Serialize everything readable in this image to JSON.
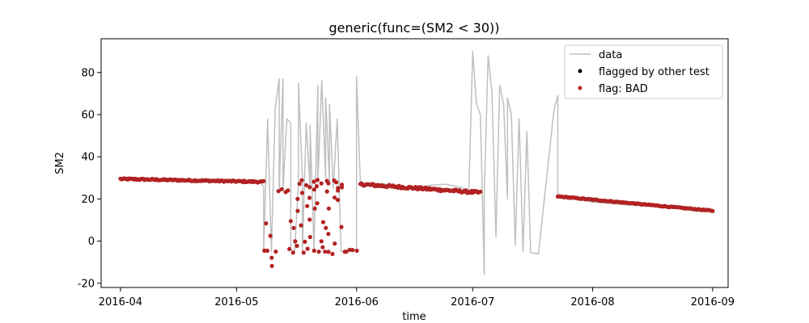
{
  "chart_data": {
    "type": "scatter",
    "title": "generic(func=(SM2 < 30))",
    "xlabel": "time",
    "ylabel": "SM2",
    "x_ticks": [
      "2016-04",
      "2016-05",
      "2016-06",
      "2016-07",
      "2016-08",
      "2016-09"
    ],
    "x_tick_dates": [
      "2016-04-01",
      "2016-05-01",
      "2016-06-01",
      "2016-07-01",
      "2016-08-01",
      "2016-09-01"
    ],
    "y_ticks": [
      -20,
      0,
      20,
      40,
      60,
      80
    ],
    "xlim": [
      "2016-03-27",
      "2016-09-05"
    ],
    "ylim": [
      -22,
      96
    ],
    "grid": false,
    "legend": {
      "placement": "top-right",
      "entries": [
        "data",
        "flagged by other test",
        "flag: BAD"
      ]
    },
    "colors": {
      "data": "#bfbfbf",
      "flagged_other": "#000000",
      "bad": "#b22222"
    },
    "series": [
      {
        "name": "data",
        "style": "line",
        "points": [
          [
            "2016-04-01",
            29.5
          ],
          [
            "2016-04-10",
            29.2
          ],
          [
            "2016-04-20",
            28.8
          ],
          [
            "2016-05-01",
            28.3
          ],
          [
            "2016-05-07",
            28.0
          ],
          [
            "2016-05-08",
            26.0
          ],
          [
            "2016-05-08",
            -4.0
          ],
          [
            "2016-05-09",
            55.0
          ],
          [
            "2016-05-09",
            58.0
          ],
          [
            "2016-05-10",
            -5.0
          ],
          [
            "2016-05-11",
            64.0
          ],
          [
            "2016-05-11",
            63.0
          ],
          [
            "2016-05-12",
            77.0
          ],
          [
            "2016-05-12",
            24.0
          ],
          [
            "2016-05-13",
            77.0
          ],
          [
            "2016-05-13",
            24.5
          ],
          [
            "2016-05-14",
            58.0
          ],
          [
            "2016-05-15",
            56.0
          ],
          [
            "2016-05-15",
            -4.0
          ],
          [
            "2016-05-16",
            -5.0
          ],
          [
            "2016-05-17",
            28.0
          ],
          [
            "2016-05-17",
            75.0
          ],
          [
            "2016-05-18",
            30.0
          ],
          [
            "2016-05-18",
            -5.0
          ],
          [
            "2016-05-19",
            56.0
          ],
          [
            "2016-05-20",
            25.0
          ],
          [
            "2016-05-20",
            55.0
          ],
          [
            "2016-05-21",
            -4.0
          ],
          [
            "2016-05-22",
            74.0
          ],
          [
            "2016-05-22",
            28.0
          ],
          [
            "2016-05-23",
            76.0
          ],
          [
            "2016-05-24",
            30.0
          ],
          [
            "2016-05-24",
            68.0
          ],
          [
            "2016-05-25",
            28.0
          ],
          [
            "2016-05-25",
            65.0
          ],
          [
            "2016-05-26",
            25.0
          ],
          [
            "2016-05-27",
            58.0
          ],
          [
            "2016-05-28",
            -5.0
          ],
          [
            "2016-05-29",
            -4.5
          ],
          [
            "2016-05-31",
            -4.5
          ],
          [
            "2016-06-01",
            -4.5
          ],
          [
            "2016-06-01",
            78.0
          ],
          [
            "2016-06-02",
            27.0
          ],
          [
            "2016-06-05",
            26.0
          ],
          [
            "2016-06-08",
            27.5
          ],
          [
            "2016-06-10",
            25.0
          ],
          [
            "2016-06-13",
            25.5
          ],
          [
            "2016-06-16",
            25.0
          ],
          [
            "2016-06-20",
            26.5
          ],
          [
            "2016-06-24",
            27.0
          ],
          [
            "2016-06-28",
            25.5
          ],
          [
            "2016-06-30",
            23.0
          ],
          [
            "2016-07-01",
            90.0
          ],
          [
            "2016-07-02",
            65.0
          ],
          [
            "2016-07-03",
            60.0
          ],
          [
            "2016-07-04",
            -16.0
          ],
          [
            "2016-07-04",
            23.0
          ],
          [
            "2016-07-05",
            88.0
          ],
          [
            "2016-07-06",
            70.0
          ],
          [
            "2016-07-07",
            2.0
          ],
          [
            "2016-07-08",
            74.0
          ],
          [
            "2016-07-09",
            65.0
          ],
          [
            "2016-07-10",
            20.0
          ],
          [
            "2016-07-10",
            68.0
          ],
          [
            "2016-07-11",
            60.0
          ],
          [
            "2016-07-12",
            -2.0
          ],
          [
            "2016-07-13",
            58.0
          ],
          [
            "2016-07-14",
            -5.0
          ],
          [
            "2016-07-15",
            52.0
          ],
          [
            "2016-07-16",
            -5.5
          ],
          [
            "2016-07-18",
            -6.0
          ],
          [
            "2016-07-22",
            62.0
          ],
          [
            "2016-07-23",
            69.0
          ],
          [
            "2016-07-23",
            21.3
          ],
          [
            "2016-08-01",
            18.5
          ],
          [
            "2016-08-10",
            17.2
          ],
          [
            "2016-08-20",
            16.0
          ],
          [
            "2016-09-01",
            14.5
          ]
        ]
      },
      {
        "name": "flag: BAD",
        "style": "scatter",
        "segments": [
          {
            "start": "2016-04-01",
            "end": "2016-05-08",
            "y_start": 29.5,
            "y_end": 28.1,
            "spread": 0.7,
            "count": 120
          },
          {
            "start": "2016-06-02",
            "end": "2016-07-03",
            "y_start": 27.0,
            "y_end": 23.0,
            "spread": 1.2,
            "count": 110
          },
          {
            "start": "2016-07-23",
            "end": "2016-09-01",
            "y_start": 21.2,
            "y_end": 14.4,
            "spread": 0.4,
            "count": 120
          }
        ],
        "points": [
          [
            "2016-05-08",
            -4.0
          ],
          [
            "2016-05-09",
            8.0
          ],
          [
            "2016-05-09",
            -5.0
          ],
          [
            "2016-05-10",
            -11.5
          ],
          [
            "2016-05-10",
            3.0
          ],
          [
            "2016-05-10",
            -8.0
          ],
          [
            "2016-05-11",
            -4.5
          ],
          [
            "2016-05-12",
            24.0
          ],
          [
            "2016-05-13",
            25.0
          ],
          [
            "2016-05-14",
            23.5
          ],
          [
            "2016-05-14",
            24.5
          ],
          [
            "2016-05-15",
            9.0
          ],
          [
            "2016-05-15",
            -4.0
          ],
          [
            "2016-05-16",
            0.0
          ],
          [
            "2016-05-16",
            -5.0
          ],
          [
            "2016-05-16",
            6.0
          ],
          [
            "2016-05-17",
            27.0
          ],
          [
            "2016-05-17",
            20.0
          ],
          [
            "2016-05-17",
            14.0
          ],
          [
            "2016-05-17",
            -2.0
          ],
          [
            "2016-05-18",
            29.0
          ],
          [
            "2016-05-18",
            23.0
          ],
          [
            "2016-05-18",
            8.0
          ],
          [
            "2016-05-18",
            -5.0
          ],
          [
            "2016-05-19",
            26.0
          ],
          [
            "2016-05-19",
            17.0
          ],
          [
            "2016-05-19",
            0.0
          ],
          [
            "2016-05-19",
            -4.0
          ],
          [
            "2016-05-20",
            25.0
          ],
          [
            "2016-05-20",
            21.0
          ],
          [
            "2016-05-20",
            10.0
          ],
          [
            "2016-05-20",
            2.0
          ],
          [
            "2016-05-21",
            28.0
          ],
          [
            "2016-05-21",
            -4.0
          ],
          [
            "2016-05-21",
            24.0
          ],
          [
            "2016-05-21",
            15.0
          ],
          [
            "2016-05-22",
            29.0
          ],
          [
            "2016-05-22",
            26.0
          ],
          [
            "2016-05-22",
            18.0
          ],
          [
            "2016-05-22",
            -5.0
          ],
          [
            "2016-05-23",
            27.0
          ],
          [
            "2016-05-23",
            9.0
          ],
          [
            "2016-05-23",
            0.0
          ],
          [
            "2016-05-23",
            -3.0
          ],
          [
            "2016-05-24",
            28.0
          ],
          [
            "2016-05-24",
            24.0
          ],
          [
            "2016-05-24",
            6.0
          ],
          [
            "2016-05-24",
            -5.0
          ],
          [
            "2016-05-25",
            27.0
          ],
          [
            "2016-05-25",
            16.0
          ],
          [
            "2016-05-25",
            3.0
          ],
          [
            "2016-05-25",
            -4.5
          ],
          [
            "2016-05-26",
            29.0
          ],
          [
            "2016-05-26",
            21.0
          ],
          [
            "2016-05-26",
            -1.0
          ],
          [
            "2016-05-26",
            -6.0
          ],
          [
            "2016-05-27",
            28.0
          ],
          [
            "2016-05-27",
            24.0
          ],
          [
            "2016-05-27",
            25.0
          ],
          [
            "2016-05-27",
            19.0
          ],
          [
            "2016-05-28",
            27.0
          ],
          [
            "2016-05-28",
            26.0
          ],
          [
            "2016-05-28",
            7.0
          ],
          [
            "2016-05-29",
            -4.5
          ],
          [
            "2016-05-29",
            -5.0
          ],
          [
            "2016-05-30",
            -4.5
          ],
          [
            "2016-05-31",
            -4.5
          ],
          [
            "2016-06-01",
            -4.0
          ]
        ]
      }
    ]
  }
}
